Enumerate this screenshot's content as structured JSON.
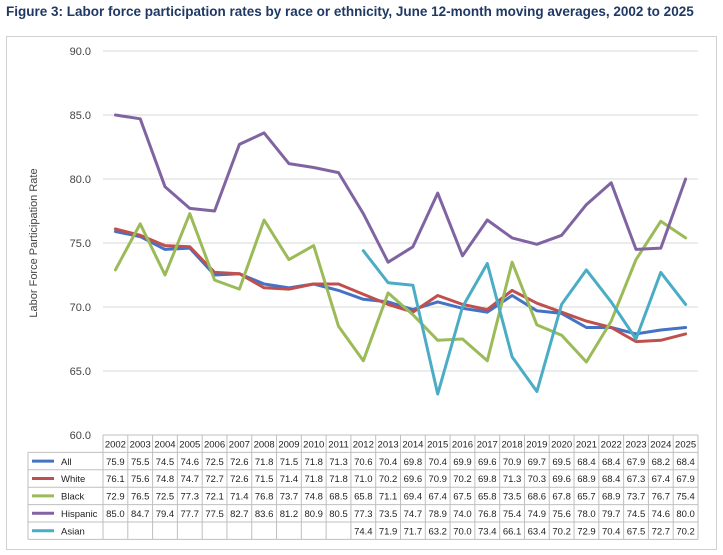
{
  "figure": {
    "title": "Figure 3: Labor force participation rates by race or ethnicity, June 12-month moving averages, 2002 to 2025"
  },
  "chart_data": {
    "type": "line",
    "title": "Figure 3: Labor force participation rates by race or ethnicity, June 12-month moving averages, 2002 to 2025",
    "xlabel": "",
    "ylabel": "Labor Force Participation Rate",
    "ylim": [
      60.0,
      90.0
    ],
    "yticks": [
      "60.0",
      "65.0",
      "70.0",
      "75.0",
      "80.0",
      "85.0",
      "90.0"
    ],
    "grid": true,
    "legend_placement": "data-table-left",
    "categories": [
      "2002",
      "2003",
      "2004",
      "2005",
      "2006",
      "2007",
      "2008",
      "2009",
      "2010",
      "2011",
      "2012",
      "2013",
      "2014",
      "2015",
      "2016",
      "2017",
      "2018",
      "2019",
      "2020",
      "2021",
      "2022",
      "2023",
      "2024",
      "2025"
    ],
    "series": [
      {
        "name": "All",
        "color": "#4472c4",
        "values": [
          75.9,
          75.5,
          74.5,
          74.6,
          72.5,
          72.6,
          71.8,
          71.5,
          71.8,
          71.3,
          70.6,
          70.4,
          69.8,
          70.4,
          69.9,
          69.6,
          70.9,
          69.7,
          69.5,
          68.4,
          68.4,
          67.9,
          68.2,
          68.4
        ],
        "labels": [
          "75.9",
          "75.5",
          "74.5",
          "74.6",
          "72.5",
          "72.6",
          "71.8",
          "71.5",
          "71.8",
          "71.3",
          "70.6",
          "70.4",
          "69.8",
          "70.4",
          "69.9",
          "69.6",
          "70.9",
          "69.7",
          "69.5",
          "68.4",
          "68.4",
          "67.9",
          "68.2",
          "68.4"
        ]
      },
      {
        "name": "White",
        "color": "#c0504d",
        "values": [
          76.1,
          75.6,
          74.8,
          74.7,
          72.7,
          72.6,
          71.5,
          71.4,
          71.8,
          71.8,
          71.0,
          70.2,
          69.6,
          70.9,
          70.2,
          69.8,
          71.3,
          70.3,
          69.6,
          68.9,
          68.4,
          67.3,
          67.4,
          67.9
        ],
        "labels": [
          "76.1",
          "75.6",
          "74.8",
          "74.7",
          "72.7",
          "72.6",
          "71.5",
          "71.4",
          "71.8",
          "71.8",
          "71.0",
          "70.2",
          "69.6",
          "70.9",
          "70.2",
          "69.8",
          "71.3",
          "70.3",
          "69.6",
          "68.9",
          "68.4",
          "67.3",
          "67.4",
          "67.9"
        ]
      },
      {
        "name": "Black",
        "color": "#9bbb59",
        "values": [
          72.9,
          76.5,
          72.5,
          77.3,
          72.1,
          71.4,
          76.8,
          73.7,
          74.8,
          68.5,
          65.8,
          71.1,
          69.4,
          67.4,
          67.5,
          65.8,
          73.5,
          68.6,
          67.8,
          65.7,
          68.9,
          73.7,
          76.7,
          75.4
        ],
        "labels": [
          "72.9",
          "76.5",
          "72.5",
          "77.3",
          "72.1",
          "71.4",
          "76.8",
          "73.7",
          "74.8",
          "68.5",
          "65.8",
          "71.1",
          "69.4",
          "67.4",
          "67.5",
          "65.8",
          "73.5",
          "68.6",
          "67.8",
          "65.7",
          "68.9",
          "73.7",
          "76.7",
          "75.4"
        ]
      },
      {
        "name": "Hispanic",
        "color": "#8064a2",
        "values": [
          85.0,
          84.7,
          79.4,
          77.7,
          77.5,
          82.7,
          83.6,
          81.2,
          80.9,
          80.5,
          77.3,
          73.5,
          74.7,
          78.9,
          74.0,
          76.8,
          75.4,
          74.9,
          75.6,
          78.0,
          79.7,
          74.5,
          74.6,
          80.0
        ],
        "labels": [
          "85.0",
          "84.7",
          "79.4",
          "77.7",
          "77.5",
          "82.7",
          "83.6",
          "81.2",
          "80.9",
          "80.5",
          "77.3",
          "73.5",
          "74.7",
          "78.9",
          "74.0",
          "76.8",
          "75.4",
          "74.9",
          "75.6",
          "78.0",
          "79.7",
          "74.5",
          "74.6",
          "80.0"
        ]
      },
      {
        "name": "Asian",
        "color": "#4bacc6",
        "values": [
          null,
          null,
          null,
          null,
          null,
          null,
          null,
          null,
          null,
          null,
          74.4,
          71.9,
          71.7,
          63.2,
          70.0,
          73.4,
          66.1,
          63.4,
          70.2,
          72.9,
          70.4,
          67.5,
          72.7,
          70.2
        ],
        "labels": [
          "",
          "",
          "",
          "",
          "",
          "",
          "",
          "",
          "",
          "",
          "74.4",
          "71.9",
          "71.7",
          "63.2",
          "70.0",
          "73.4",
          "66.1",
          "63.4",
          "70.2",
          "72.9",
          "70.4",
          "67.5",
          "72.7",
          "70.2"
        ]
      }
    ]
  }
}
